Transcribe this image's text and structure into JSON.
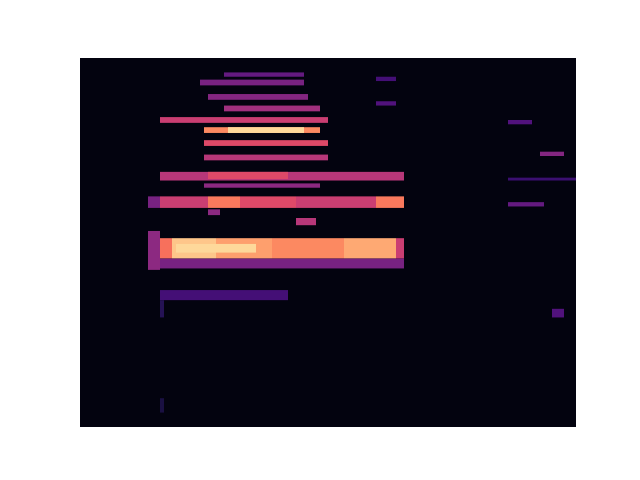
{
  "chart_data": {
    "type": "heatmap",
    "color": "magma",
    "tick_labels": false,
    "xlim": [
      0,
      62
    ],
    "ylim": [
      0,
      128
    ],
    "zlim": [
      0,
      1
    ],
    "cells": [
      [
        0,
        62,
        0,
        128,
        0.03
      ],
      [
        8.5,
        10,
        54.5,
        68,
        0.4
      ],
      [
        10,
        40.5,
        55,
        58.5,
        0.35
      ],
      [
        10,
        26,
        44,
        47.5,
        0.22
      ],
      [
        10,
        11.5,
        58.5,
        65.5,
        0.7
      ],
      [
        11.5,
        17,
        58.5,
        65.5,
        0.88
      ],
      [
        17,
        24,
        58.5,
        65.5,
        0.8
      ],
      [
        24,
        33,
        58.5,
        65.5,
        0.75
      ],
      [
        33,
        39.5,
        58.5,
        65.5,
        0.82
      ],
      [
        39.5,
        40.5,
        58.5,
        65.5,
        0.55
      ],
      [
        12,
        22,
        60.5,
        63.5,
        0.92
      ],
      [
        8.5,
        10,
        76,
        80,
        0.35
      ],
      [
        10,
        16,
        76,
        80,
        0.55
      ],
      [
        16,
        20,
        76,
        80,
        0.72
      ],
      [
        20,
        27,
        76,
        80,
        0.6
      ],
      [
        27,
        37,
        76,
        80,
        0.55
      ],
      [
        37,
        40.5,
        76,
        80,
        0.72
      ],
      [
        27,
        29.5,
        70,
        72.5,
        0.5
      ],
      [
        16,
        17.5,
        73.5,
        75.5,
        0.4
      ],
      [
        10,
        40.5,
        85.5,
        88.5,
        0.5
      ],
      [
        16,
        26,
        86,
        88.5,
        0.6
      ],
      [
        15.5,
        30,
        83,
        84.5,
        0.4
      ],
      [
        15.5,
        31,
        92.5,
        94.5,
        0.5
      ],
      [
        15.5,
        31,
        97.5,
        99.5,
        0.6
      ],
      [
        15.5,
        30,
        102,
        104,
        0.75
      ],
      [
        18.5,
        28,
        102,
        104,
        0.92
      ],
      [
        10,
        31,
        105.5,
        107.5,
        0.55
      ],
      [
        18,
        30,
        109.5,
        111.5,
        0.45
      ],
      [
        16,
        28.5,
        113.5,
        115.5,
        0.38
      ],
      [
        15,
        28,
        118.5,
        120.5,
        0.35
      ],
      [
        18,
        28,
        121.5,
        123,
        0.3
      ],
      [
        37,
        39.5,
        111.5,
        113,
        0.25
      ],
      [
        37,
        39.5,
        120,
        121.5,
        0.22
      ],
      [
        53.5,
        56.5,
        105,
        106.5,
        0.25
      ],
      [
        57.5,
        60.5,
        94,
        95.5,
        0.38
      ],
      [
        53.5,
        62,
        85.5,
        86.5,
        0.2
      ],
      [
        53.5,
        58,
        76.5,
        78,
        0.3
      ],
      [
        59,
        60.5,
        38,
        41,
        0.25
      ],
      [
        10,
        10.5,
        5,
        10,
        0.12
      ],
      [
        10,
        10.5,
        38,
        44,
        0.15
      ]
    ]
  }
}
